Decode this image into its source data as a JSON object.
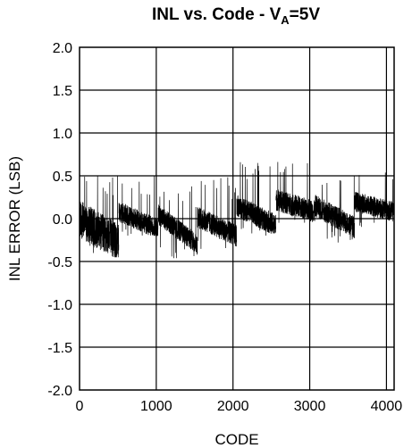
{
  "chart_data": {
    "type": "line",
    "title": {
      "main": "INL vs. Code - V",
      "subscript": "A",
      "suffix": "=5V"
    },
    "xlabel": "CODE",
    "ylabel": "INL ERROR (LSB)",
    "xlim": [
      0,
      4100
    ],
    "ylim": [
      -2.0,
      2.0
    ],
    "x_ticks": [
      0,
      1000,
      2000,
      3000,
      4000
    ],
    "x_tick_labels": [
      "0",
      "1000",
      "2000",
      "3000",
      "4000"
    ],
    "y_ticks": [
      2.0,
      1.5,
      1.0,
      0.5,
      0.0,
      -0.5,
      -1.0,
      -1.5,
      -2.0
    ],
    "y_tick_labels": [
      "2.0",
      "1.5",
      "1.0",
      "0.5",
      "0.0",
      "-0.5",
      "-1.0",
      "-1.5",
      "-2.0"
    ],
    "grid": true,
    "line_color": "#000000",
    "segments": [
      {
        "x_start": 0,
        "x_end": 511,
        "y_start": 0.0,
        "y_end": -0.28,
        "noise": 0.22,
        "spike_max": 0.52,
        "spike_min": -0.45
      },
      {
        "x_start": 512,
        "x_end": 1023,
        "y_start": 0.08,
        "y_end": -0.12,
        "noise": 0.12,
        "spike_max": 0.5,
        "spike_min": -0.2
      },
      {
        "x_start": 1024,
        "x_end": 1535,
        "y_start": 0.05,
        "y_end": -0.3,
        "noise": 0.12,
        "spike_max": 0.38,
        "spike_min": -0.47
      },
      {
        "x_start": 1536,
        "x_end": 2047,
        "y_start": 0.02,
        "y_end": -0.2,
        "noise": 0.13,
        "spike_max": 0.5,
        "spike_min": -0.38
      },
      {
        "x_start": 2048,
        "x_end": 2559,
        "y_start": 0.15,
        "y_end": -0.08,
        "noise": 0.13,
        "spike_max": 0.7,
        "spike_min": -0.2
      },
      {
        "x_start": 2560,
        "x_end": 3071,
        "y_start": 0.22,
        "y_end": 0.08,
        "noise": 0.13,
        "spike_max": 0.68,
        "spike_min": -0.05
      },
      {
        "x_start": 3072,
        "x_end": 3583,
        "y_start": 0.15,
        "y_end": -0.1,
        "noise": 0.13,
        "spike_max": 0.55,
        "spike_min": -0.28
      },
      {
        "x_start": 3584,
        "x_end": 4095,
        "y_start": 0.2,
        "y_end": 0.08,
        "noise": 0.12,
        "spike_max": 0.6,
        "spike_min": -0.12
      }
    ]
  }
}
